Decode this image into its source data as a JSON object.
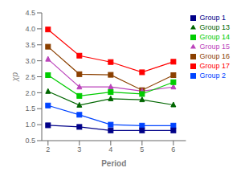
{
  "chart_data": {
    "type": "line",
    "xlabel": "Period",
    "ylabel": "χp",
    "xlim": [
      1.8,
      6.4
    ],
    "xticks": [
      2,
      3,
      4,
      5,
      6
    ],
    "ylim": [
      0.5,
      4.5
    ],
    "yticks": [
      0.5,
      {
        "value": 1.0,
        "label": "1.0"
      },
      1.5,
      {
        "value": 2.0,
        "label": "2.0"
      },
      2.5,
      {
        "value": 3.0,
        "label": "3.0"
      },
      3.5,
      {
        "value": 4.0,
        "label": "4.0"
      },
      4.5
    ],
    "x": [
      2,
      3,
      4,
      5,
      6
    ],
    "grid": false,
    "legend": "right",
    "series": [
      {
        "name": "Group 17",
        "color": "#FF0000",
        "marker": "square",
        "values": [
          3.98,
          3.16,
          2.96,
          2.64,
          2.97
        ]
      },
      {
        "name": "Group 16",
        "color": "#8B4000",
        "marker": "square",
        "values": [
          3.44,
          2.58,
          2.56,
          2.08,
          2.55
        ]
      },
      {
        "name": "Group 15",
        "color": "#BB44BB",
        "marker": "triangle",
        "values": [
          3.05,
          2.18,
          2.18,
          2.05,
          2.18
        ]
      },
      {
        "name": "Group 14",
        "color": "#00CC00",
        "marker": "square",
        "values": [
          2.55,
          1.9,
          2.02,
          1.96,
          2.33
        ]
      },
      {
        "name": "Group 13",
        "color": "#006600",
        "marker": "triangle",
        "values": [
          2.04,
          1.61,
          1.81,
          1.78,
          1.62
        ]
      },
      {
        "name": "Group 2",
        "color": "#0044FF",
        "marker": "square",
        "values": [
          1.6,
          1.31,
          1.0,
          0.97,
          0.97
        ]
      },
      {
        "name": "Group 1",
        "color": "#000088",
        "marker": "square",
        "values": [
          0.98,
          0.93,
          0.82,
          0.82,
          0.82
        ]
      }
    ]
  }
}
